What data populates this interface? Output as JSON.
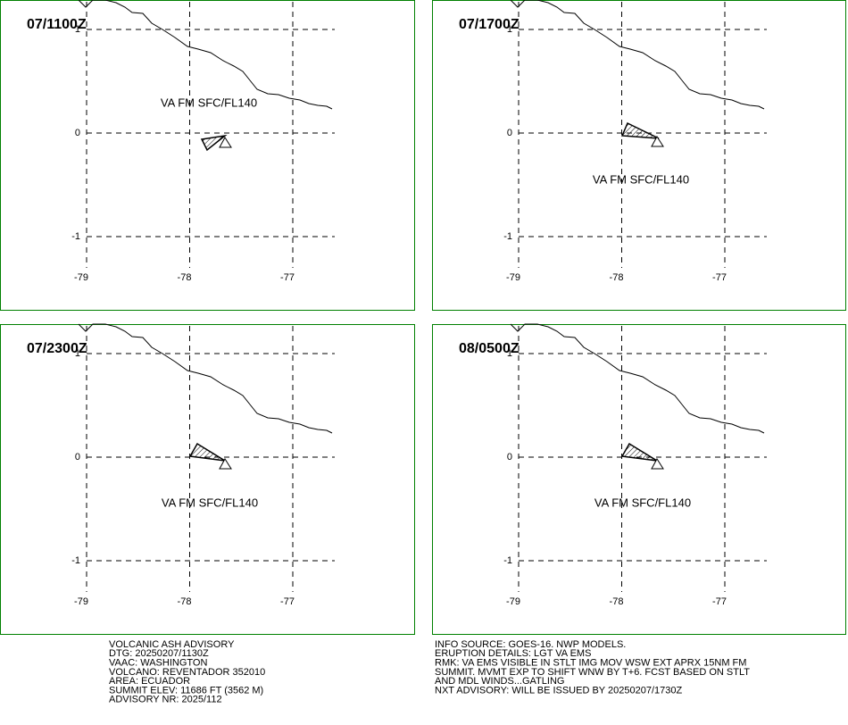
{
  "panels": [
    {
      "time": "07/1100Z",
      "label": "VA FM SFC/FL140"
    },
    {
      "time": "07/1700Z",
      "label": "VA FM SFC/FL140"
    },
    {
      "time": "07/2300Z",
      "label": "VA FM SFC/FL140"
    },
    {
      "time": "08/0500Z",
      "label": "VA FM SFC/FL140"
    }
  ],
  "lat_ticks": [
    1,
    0,
    -1
  ],
  "lon_ticks": [
    -79,
    -78,
    -77
  ],
  "advisory_left": [
    "VOLCANIC ASH ADVISORY",
    "DTG: 20250207/1130Z",
    "VAAC: WASHINGTON",
    "VOLCANO: REVENTADOR 352010",
    "AREA: ECUADOR",
    "SUMMIT ELEV: 11686 FT (3562 M)",
    "ADVISORY NR: 2025/112"
  ],
  "advisory_right": [
    "INFO SOURCE: GOES-16. NWP MODELS.",
    "ERUPTION DETAILS: LGT VA EMS",
    "RMK: VA EMS VISIBLE IN STLT IMG MOV WSW EXT APRX 15NM FM",
    "SUMMIT. MVMT EXP TO SHIFT WNW BY T+6. FCST BASED ON STLT",
    "AND MDL WINDS...GATLING",
    "NXT ADVISORY: WILL BE ISSUED BY 20250207/1730Z"
  ]
}
